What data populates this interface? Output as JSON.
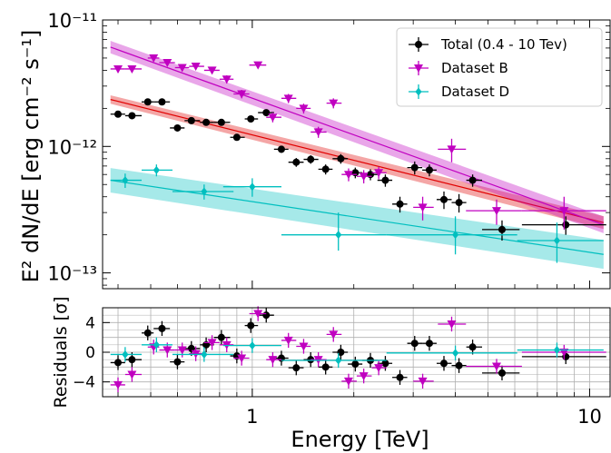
{
  "chart_data": [
    {
      "type": "scatter",
      "xlabel": "Energy [TeV]",
      "ylabel": "E² dN/dE [erg cm⁻² s⁻¹]",
      "xscale": "log",
      "yscale": "log",
      "xlim": [
        0.36,
        11.5
      ],
      "ylim": [
        7.5e-14,
        1e-11
      ],
      "y_tick_labels": [
        "10⁻¹¹",
        "10⁻¹²",
        "10⁻¹³"
      ],
      "legend": {
        "position": "top-right",
        "entries": [
          "Total (0.4 - 10 Tev)",
          "Dataset B",
          "Dataset D"
        ]
      },
      "colors": {
        "total": "#000000",
        "dataset_b": "#c000c0",
        "dataset_d": "#00bfbf",
        "total_fit": "#e00000"
      },
      "series": [
        {
          "name": "Total (0.4 - 10 Tev)",
          "marker": "circle",
          "points": [
            {
              "x": 0.4,
              "y": 1.8e-12,
              "xerr": [
                0.38,
                0.42
              ],
              "yerr": [
                1.7e-12,
                1.9e-12
              ]
            },
            {
              "x": 0.44,
              "y": 1.75e-12,
              "xerr": [
                0.42,
                0.47
              ],
              "yerr": [
                1.65e-12,
                1.85e-12
              ]
            },
            {
              "x": 0.49,
              "y": 2.25e-12,
              "xerr": [
                0.47,
                0.51
              ],
              "yerr": [
                2.15e-12,
                2.35e-12
              ]
            },
            {
              "x": 0.54,
              "y": 2.25e-12,
              "xerr": [
                0.51,
                0.57
              ],
              "yerr": [
                2.15e-12,
                2.35e-12
              ]
            },
            {
              "x": 0.6,
              "y": 1.4e-12,
              "xerr": [
                0.57,
                0.63
              ],
              "yerr": [
                1.33e-12,
                1.47e-12
              ]
            },
            {
              "x": 0.66,
              "y": 1.6e-12,
              "xerr": [
                0.63,
                0.7
              ],
              "yerr": [
                1.52e-12,
                1.68e-12
              ]
            },
            {
              "x": 0.73,
              "y": 1.55e-12,
              "xerr": [
                0.7,
                0.77
              ],
              "yerr": [
                1.47e-12,
                1.63e-12
              ]
            },
            {
              "x": 0.81,
              "y": 1.55e-12,
              "xerr": [
                0.77,
                0.86
              ],
              "yerr": [
                1.47e-12,
                1.63e-12
              ]
            },
            {
              "x": 0.9,
              "y": 1.18e-12,
              "xerr": [
                0.86,
                0.95
              ],
              "yerr": [
                1.11e-12,
                1.25e-12
              ]
            },
            {
              "x": 0.99,
              "y": 1.65e-12,
              "xerr": [
                0.95,
                1.04
              ],
              "yerr": [
                1.56e-12,
                1.74e-12
              ]
            },
            {
              "x": 1.1,
              "y": 1.85e-12,
              "xerr": [
                1.04,
                1.16
              ],
              "yerr": [
                1.76e-12,
                1.94e-12
              ]
            },
            {
              "x": 1.22,
              "y": 9.5e-13,
              "xerr": [
                1.16,
                1.28
              ],
              "yerr": [
                8.9e-13,
                1.01e-12
              ]
            },
            {
              "x": 1.35,
              "y": 7.5e-13,
              "xerr": [
                1.28,
                1.42
              ],
              "yerr": [
                6.9e-13,
                8.1e-13
              ]
            },
            {
              "x": 1.49,
              "y": 7.9e-13,
              "xerr": [
                1.42,
                1.57
              ],
              "yerr": [
                7.3e-13,
                8.5e-13
              ]
            },
            {
              "x": 1.65,
              "y": 6.6e-13,
              "xerr": [
                1.57,
                1.73
              ],
              "yerr": [
                6e-13,
                7.2e-13
              ]
            },
            {
              "x": 1.83,
              "y": 8e-13,
              "xerr": [
                1.73,
                1.92
              ],
              "yerr": [
                7.3e-13,
                8.7e-13
              ]
            },
            {
              "x": 2.02,
              "y": 6.2e-13,
              "xerr": [
                1.92,
                2.12
              ],
              "yerr": [
                5.6e-13,
                6.8e-13
              ]
            },
            {
              "x": 2.24,
              "y": 6e-13,
              "xerr": [
                2.12,
                2.35
              ],
              "yerr": [
                5.4e-13,
                6.6e-13
              ]
            },
            {
              "x": 2.48,
              "y": 5.4e-13,
              "xerr": [
                2.35,
                2.6
              ],
              "yerr": [
                4.8e-13,
                6e-13
              ]
            },
            {
              "x": 2.74,
              "y": 3.5e-13,
              "xerr": [
                2.6,
                2.88
              ],
              "yerr": [
                3e-13,
                4e-13
              ]
            },
            {
              "x": 3.03,
              "y": 6.8e-13,
              "xerr": [
                2.88,
                3.19
              ],
              "yerr": [
                6e-13,
                7.6e-13
              ]
            },
            {
              "x": 3.35,
              "y": 6.5e-13,
              "xerr": [
                3.19,
                3.52
              ],
              "yerr": [
                5.8e-13,
                7.2e-13
              ]
            },
            {
              "x": 3.7,
              "y": 3.8e-13,
              "xerr": [
                3.52,
                3.9
              ],
              "yerr": [
                3.2e-13,
                4.4e-13
              ]
            },
            {
              "x": 4.1,
              "y": 3.6e-13,
              "xerr": [
                3.9,
                4.31
              ],
              "yerr": [
                3e-13,
                4.2e-13
              ]
            },
            {
              "x": 4.5,
              "y": 5.4e-13,
              "xerr": [
                4.31,
                4.8
              ],
              "yerr": [
                4.8e-13,
                6e-13
              ]
            },
            {
              "x": 5.5,
              "y": 2.2e-13,
              "xerr": [
                4.8,
                6.2
              ],
              "yerr": [
                1.8e-13,
                2.6e-13
              ]
            },
            {
              "x": 8.5,
              "y": 2.4e-13,
              "xerr": [
                6.3,
                11.2
              ],
              "yerr": [
                2e-13,
                2.8e-13
              ]
            }
          ],
          "residuals": [
            -1.4,
            -1.0,
            2.6,
            3.2,
            -1.3,
            0.5,
            1.0,
            2.0,
            -0.5,
            3.6,
            5.0,
            -0.8,
            -2.1,
            -1.0,
            -2.0,
            0.0,
            -1.6,
            -1.1,
            -1.5,
            -3.4,
            1.2,
            1.2,
            -1.5,
            -1.8,
            0.7,
            -2.8,
            -0.6
          ]
        },
        {
          "name": "Dataset B",
          "marker": "triangle-down",
          "points": [
            {
              "x": 0.4,
              "y": 4.1e-12,
              "xerr": [
                0.38,
                0.42
              ],
              "yerr": [
                3.85e-12,
                4.35e-12
              ]
            },
            {
              "x": 0.44,
              "y": 4.1e-12,
              "xerr": [
                0.42,
                0.47
              ],
              "yerr": [
                3.85e-12,
                4.35e-12
              ]
            },
            {
              "x": 0.51,
              "y": 5e-12,
              "xerr": [
                0.49,
                0.53
              ],
              "yerr": [
                4.75e-12,
                5.25e-12
              ]
            },
            {
              "x": 0.56,
              "y": 4.6e-12,
              "xerr": [
                0.53,
                0.59
              ],
              "yerr": [
                4.35e-12,
                4.85e-12
              ]
            },
            {
              "x": 0.62,
              "y": 4.2e-12,
              "xerr": [
                0.59,
                0.65
              ],
              "yerr": [
                3.95e-12,
                4.45e-12
              ]
            },
            {
              "x": 0.68,
              "y": 4.3e-12,
              "xerr": [
                0.65,
                0.72
              ],
              "yerr": [
                4.05e-12,
                4.55e-12
              ]
            },
            {
              "x": 0.76,
              "y": 4e-12,
              "xerr": [
                0.72,
                0.8
              ],
              "yerr": [
                3.75e-12,
                4.25e-12
              ]
            },
            {
              "x": 0.84,
              "y": 3.4e-12,
              "xerr": [
                0.8,
                0.88
              ],
              "yerr": [
                3.15e-12,
                3.65e-12
              ]
            },
            {
              "x": 0.93,
              "y": 2.6e-12,
              "xerr": [
                0.88,
                0.98
              ],
              "yerr": [
                2.4e-12,
                2.8e-12
              ]
            },
            {
              "x": 1.04,
              "y": 4.4e-12,
              "xerr": [
                0.98,
                1.1
              ],
              "yerr": [
                4.15e-12,
                4.65e-12
              ]
            },
            {
              "x": 1.15,
              "y": 1.7e-12,
              "xerr": [
                1.1,
                1.22
              ],
              "yerr": [
                1.55e-12,
                1.85e-12
              ]
            },
            {
              "x": 1.28,
              "y": 2.4e-12,
              "xerr": [
                1.22,
                1.35
              ],
              "yerr": [
                2.2e-12,
                2.6e-12
              ]
            },
            {
              "x": 1.42,
              "y": 2e-12,
              "xerr": [
                1.35,
                1.49
              ],
              "yerr": [
                1.82e-12,
                2.18e-12
              ]
            },
            {
              "x": 1.57,
              "y": 1.3e-12,
              "xerr": [
                1.49,
                1.66
              ],
              "yerr": [
                1.17e-12,
                1.43e-12
              ]
            },
            {
              "x": 1.74,
              "y": 2.2e-12,
              "xerr": [
                1.66,
                1.84
              ],
              "yerr": [
                2e-12,
                2.4e-12
              ]
            },
            {
              "x": 1.93,
              "y": 6e-13,
              "xerr": [
                1.84,
                2.04
              ],
              "yerr": [
                5.3e-13,
                6.7e-13
              ]
            },
            {
              "x": 2.14,
              "y": 5.8e-13,
              "xerr": [
                2.04,
                2.26
              ],
              "yerr": [
                5.1e-13,
                6.5e-13
              ]
            },
            {
              "x": 2.37,
              "y": 6.2e-13,
              "xerr": [
                2.26,
                2.5
              ],
              "yerr": [
                5.5e-13,
                6.9e-13
              ]
            },
            {
              "x": 3.2,
              "y": 3.3e-13,
              "xerr": [
                3.0,
                3.45
              ],
              "yerr": [
                2.6e-13,
                4e-13
              ]
            },
            {
              "x": 3.9,
              "y": 9.5e-13,
              "xerr": [
                3.55,
                4.3
              ],
              "yerr": [
                7.5e-13,
                1.15e-12
              ]
            },
            {
              "x": 5.3,
              "y": 3.1e-13,
              "xerr": [
                4.3,
                6.3
              ],
              "yerr": [
                2.4e-13,
                3.8e-13
              ]
            },
            {
              "x": 8.4,
              "y": 3.1e-13,
              "xerr": [
                6.3,
                11.2
              ],
              "yerr": [
                2.2e-13,
                4e-13
              ]
            }
          ],
          "residuals": [
            -4.4,
            -3.0,
            0.7,
            0.3,
            0.3,
            -0.2,
            1.3,
            1.0,
            -0.8,
            5.2,
            -1.0,
            1.6,
            0.8,
            -1.0,
            2.4,
            -3.9,
            -3.2,
            -2.1,
            -3.9,
            3.8,
            -1.9,
            0.0
          ]
        },
        {
          "name": "Dataset D",
          "marker": "diamond",
          "points": [
            {
              "x": 0.42,
              "y": 5.4e-13,
              "xerr": [
                0.38,
                0.47
              ],
              "yerr": [
                4.7e-13,
                6.1e-13
              ]
            },
            {
              "x": 0.52,
              "y": 6.5e-13,
              "xerr": [
                0.47,
                0.58
              ],
              "yerr": [
                5.8e-13,
                7.2e-13
              ]
            },
            {
              "x": 0.72,
              "y": 4.4e-13,
              "xerr": [
                0.58,
                0.88
              ],
              "yerr": [
                3.8e-13,
                5e-13
              ]
            },
            {
              "x": 1.0,
              "y": 4.8e-13,
              "xerr": [
                0.82,
                1.22
              ],
              "yerr": [
                4e-13,
                5.6e-13
              ]
            },
            {
              "x": 1.8,
              "y": 2e-13,
              "xerr": [
                1.22,
                2.5
              ],
              "yerr": [
                1.5e-13,
                3e-13
              ]
            },
            {
              "x": 4.0,
              "y": 2e-13,
              "xerr": [
                2.5,
                6.1
              ],
              "yerr": [
                1.4e-13,
                2.8e-13
              ]
            },
            {
              "x": 8.0,
              "y": 1.8e-13,
              "xerr": [
                6.1,
                11.0
              ],
              "yerr": [
                1.2e-13,
                2.5e-13
              ]
            }
          ],
          "residuals": [
            -0.3,
            1.0,
            -0.3,
            0.9,
            -1.1,
            -0.1,
            0.3
          ]
        }
      ],
      "fits": [
        {
          "series": "Total (0.4 - 10 Tev)",
          "color": "#e00000",
          "x": [
            0.38,
            11.0
          ],
          "y": [
            2.35e-12,
            2.5e-13
          ],
          "band_factor": 1.08
        },
        {
          "series": "Dataset B",
          "color": "#c000c0",
          "x": [
            0.38,
            11.0
          ],
          "y": [
            6.1e-12,
            2.4e-13
          ],
          "band_factor": 1.12
        },
        {
          "series": "Dataset D",
          "color": "#00bfbf",
          "x": [
            0.38,
            11.0
          ],
          "y": [
            5.4e-13,
            1.4e-13
          ],
          "band_factor": 1.25
        }
      ]
    },
    {
      "type": "scatter",
      "ylabel": "Residuals [σ]",
      "xlabel": "Energy [TeV]",
      "xscale": "log",
      "ylim": [
        -6,
        6
      ],
      "yticks": [
        -4,
        0,
        4
      ],
      "xtick_labels": [
        "1",
        "10"
      ],
      "grid": true
    }
  ]
}
